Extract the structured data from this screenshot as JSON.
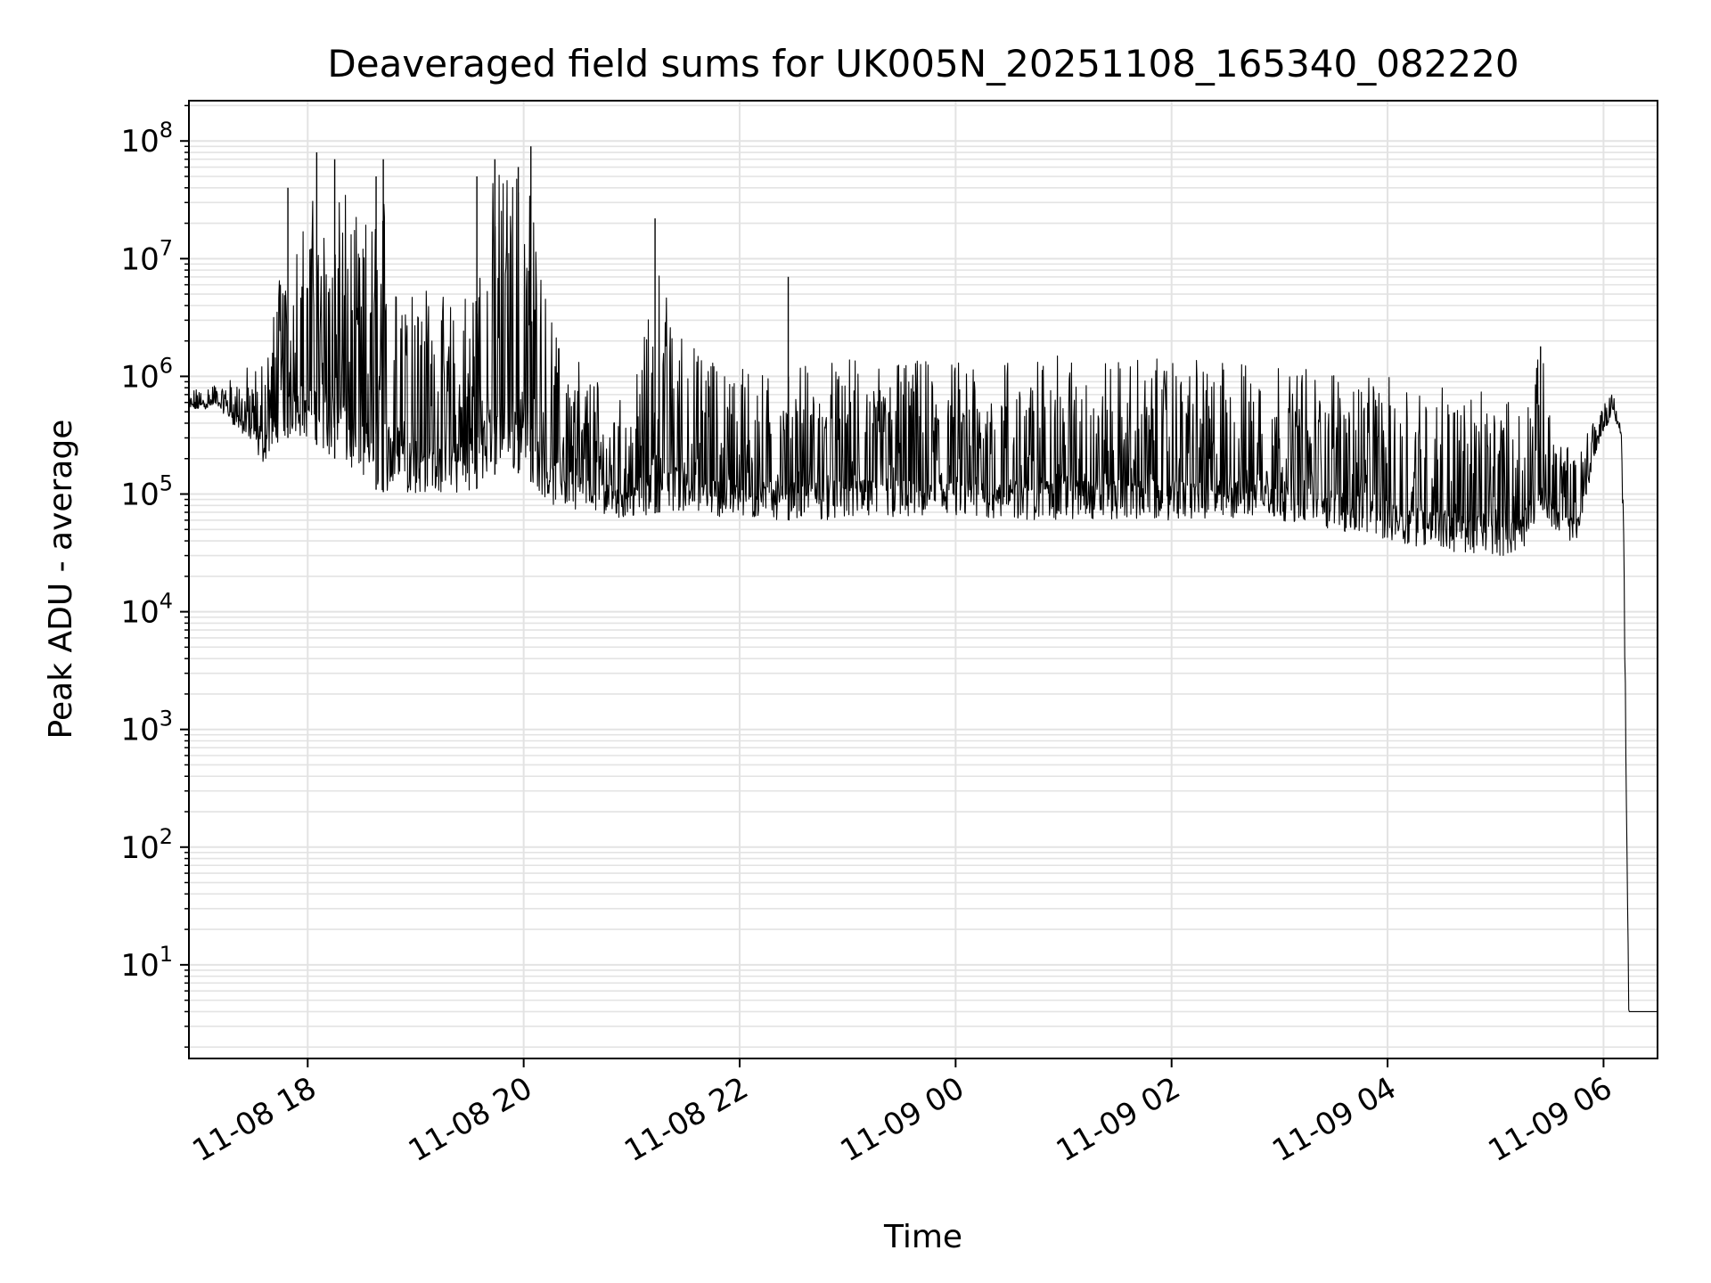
{
  "chart_data": {
    "type": "line",
    "title": "Deaveraged field sums for UK005N_20251108_165340_082220",
    "xlabel": "Time",
    "ylabel": "Peak ADU - average",
    "y_scale": "log",
    "ylim": [
      1.6,
      220000000.0
    ],
    "xlim": [
      "2025-11-08 16:54",
      "2025-11-09 06:30"
    ],
    "grid": true,
    "line_color": "#000000",
    "grid_color": "#e3e3e3",
    "x_ticks": [
      {
        "t": "2025-11-08 18:00",
        "label": "11-08 18"
      },
      {
        "t": "2025-11-08 20:00",
        "label": "11-08 20"
      },
      {
        "t": "2025-11-08 22:00",
        "label": "11-08 22"
      },
      {
        "t": "2025-11-09 00:00",
        "label": "11-09 00"
      },
      {
        "t": "2025-11-09 02:00",
        "label": "11-09 02"
      },
      {
        "t": "2025-11-09 04:00",
        "label": "11-09 04"
      },
      {
        "t": "2025-11-09 06:00",
        "label": "11-09 06"
      }
    ],
    "y_ticks": [
      {
        "value": 10,
        "base": "10",
        "exp": "1"
      },
      {
        "value": 100,
        "base": "10",
        "exp": "2"
      },
      {
        "value": 1000,
        "base": "10",
        "exp": "3"
      },
      {
        "value": 10000,
        "base": "10",
        "exp": "4"
      },
      {
        "value": 100000,
        "base": "10",
        "exp": "5"
      },
      {
        "value": 1000000,
        "base": "10",
        "exp": "6"
      },
      {
        "value": 10000000,
        "base": "10",
        "exp": "7"
      },
      {
        "value": 100000000,
        "base": "10",
        "exp": "8"
      }
    ],
    "series": [
      {
        "envelope": [
          {
            "t": "2025-11-08 16:54",
            "lo": 500000.0,
            "hi": 750000.0
          },
          {
            "t": "2025-11-08 17:10",
            "lo": 550000.0,
            "hi": 900000.0
          },
          {
            "t": "2025-11-08 17:25",
            "lo": 300000.0,
            "hi": 1200000.0
          },
          {
            "t": "2025-11-08 17:35",
            "lo": 180000.0,
            "hi": 1400000.0
          },
          {
            "t": "2025-11-08 17:45",
            "lo": 300000.0,
            "hi": 10000000.0
          },
          {
            "t": "2025-11-08 18:00",
            "lo": 300000.0,
            "hi": 30000000.0
          },
          {
            "t": "2025-11-08 18:15",
            "lo": 200000.0,
            "hi": 50000000.0
          },
          {
            "t": "2025-11-08 18:30",
            "lo": 120000.0,
            "hi": 20000000.0
          },
          {
            "t": "2025-11-08 18:45",
            "lo": 100000.0,
            "hi": 50000000.0
          },
          {
            "t": "2025-11-08 19:00",
            "lo": 100000.0,
            "hi": 10000000.0
          },
          {
            "t": "2025-11-08 19:15",
            "lo": 100000.0,
            "hi": 5000000.0
          },
          {
            "t": "2025-11-08 19:30",
            "lo": 100000.0,
            "hi": 6000000.0
          },
          {
            "t": "2025-11-08 19:45",
            "lo": 150000.0,
            "hi": 70000000.0
          },
          {
            "t": "2025-11-08 20:00",
            "lo": 150000.0,
            "hi": 80000000.0
          },
          {
            "t": "2025-11-08 20:15",
            "lo": 80000.0,
            "hi": 3000000.0
          },
          {
            "t": "2025-11-08 20:40",
            "lo": 70000.0,
            "hi": 1000000.0
          },
          {
            "t": "2025-11-08 21:00",
            "lo": 60000.0,
            "hi": 600000.0
          },
          {
            "t": "2025-11-08 21:15",
            "lo": 70000.0,
            "hi": 10000000.0
          },
          {
            "t": "2025-11-08 21:30",
            "lo": 70000.0,
            "hi": 2000000.0
          },
          {
            "t": "2025-11-08 22:00",
            "lo": 60000.0,
            "hi": 1200000.0
          },
          {
            "t": "2025-11-08 23:00",
            "lo": 60000.0,
            "hi": 1400000.0
          },
          {
            "t": "2025-11-09 00:00",
            "lo": 60000.0,
            "hi": 1400000.0
          },
          {
            "t": "2025-11-09 01:00",
            "lo": 60000.0,
            "hi": 1500000.0
          },
          {
            "t": "2025-11-09 02:00",
            "lo": 60000.0,
            "hi": 1400000.0
          },
          {
            "t": "2025-11-09 03:00",
            "lo": 60000.0,
            "hi": 1300000.0
          },
          {
            "t": "2025-11-09 04:00",
            "lo": 40000.0,
            "hi": 1000000.0
          },
          {
            "t": "2025-11-09 04:45",
            "lo": 30000.0,
            "hi": 800000.0
          },
          {
            "t": "2025-11-09 05:15",
            "lo": 30000.0,
            "hi": 600000.0
          },
          {
            "t": "2025-11-09 05:25",
            "lo": 80000.0,
            "hi": 1700000.0
          },
          {
            "t": "2025-11-09 05:35",
            "lo": 40000.0,
            "hi": 400000.0
          },
          {
            "t": "2025-11-09 05:45",
            "lo": 40000.0,
            "hi": 200000.0
          },
          {
            "t": "2025-11-09 05:55",
            "lo": 200000.0,
            "hi": 600000.0
          },
          {
            "t": "2025-11-09 06:05",
            "lo": 500000.0,
            "hi": 750000.0
          },
          {
            "t": "2025-11-09 06:10",
            "lo": 300000.0,
            "hi": 400000.0
          },
          {
            "t": "2025-11-09 06:12",
            "lo": 2000.0,
            "hi": 20000.0
          },
          {
            "t": "2025-11-09 06:14",
            "lo": 4,
            "hi": 4
          },
          {
            "t": "2025-11-09 06:30",
            "lo": 4,
            "hi": 4
          }
        ],
        "spikes": [
          {
            "t": "2025-11-08 17:49",
            "v": 40000000.0
          },
          {
            "t": "2025-11-08 18:05",
            "v": 80000000.0
          },
          {
            "t": "2025-11-08 18:15",
            "v": 70000000.0
          },
          {
            "t": "2025-11-08 18:38",
            "v": 50000000.0
          },
          {
            "t": "2025-11-08 18:42",
            "v": 70000000.0
          },
          {
            "t": "2025-11-08 19:34",
            "v": 50000000.0
          },
          {
            "t": "2025-11-08 19:44",
            "v": 70000000.0
          },
          {
            "t": "2025-11-08 19:57",
            "v": 60000000.0
          },
          {
            "t": "2025-11-08 20:04",
            "v": 90000000.0
          },
          {
            "t": "2025-11-08 21:13",
            "v": 22000000.0
          },
          {
            "t": "2025-11-08 22:27",
            "v": 7000000.0
          },
          {
            "t": "2025-11-09 05:25",
            "v": 1800000.0
          }
        ]
      }
    ]
  }
}
